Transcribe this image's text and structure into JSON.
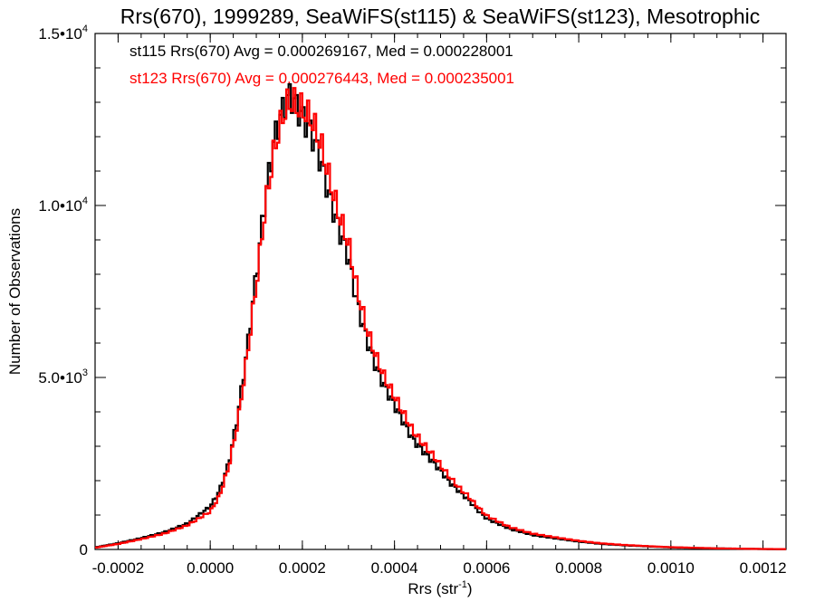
{
  "chart_data": {
    "type": "step-histogram",
    "title": "Rrs(670), 1999289, SeaWiFS(st115) & SeaWiFS(st123), Mesotrophic",
    "xlabel": "Rrs (str",
    "xlabel_sup": "-1",
    "xlabel_close": ")",
    "ylabel": "Number of Observations",
    "xlim": [
      -0.00025,
      0.00125
    ],
    "ylim": [
      0,
      15000
    ],
    "x_ticks": [
      {
        "value": -0.0002,
        "label": "-0.0002"
      },
      {
        "value": 0.0,
        "label": "0.0000"
      },
      {
        "value": 0.0002,
        "label": "0.0002"
      },
      {
        "value": 0.0004,
        "label": "0.0004"
      },
      {
        "value": 0.0006,
        "label": "0.0006"
      },
      {
        "value": 0.0008,
        "label": "0.0008"
      },
      {
        "value": 0.001,
        "label": "0.0010"
      },
      {
        "value": 0.0012,
        "label": "0.0012"
      }
    ],
    "y_ticks": [
      {
        "value": 0,
        "mantissa": "0",
        "exp": ""
      },
      {
        "value": 5000,
        "mantissa": "5.0•10",
        "exp": "3"
      },
      {
        "value": 10000,
        "mantissa": "1.0•10",
        "exp": "4"
      },
      {
        "value": 15000,
        "mantissa": "1.5•10",
        "exp": "4"
      }
    ],
    "legend": [
      {
        "text": "st115 Rrs(670) Avg = 0.000269167, Med = 0.000228001",
        "color": "#000000"
      },
      {
        "text": "st123 Rrs(670) Avg = 0.000276443, Med = 0.000235001",
        "color": "#ff0000"
      }
    ],
    "bin_width": 5e-06,
    "series": [
      {
        "name": "st115",
        "color": "#000000",
        "points": [
          [
            -0.00025,
            60
          ],
          [
            -0.0002,
            180
          ],
          [
            -0.00015,
            330
          ],
          [
            -0.0001,
            500
          ],
          [
            -5e-05,
            750
          ],
          [
            0.0,
            1250
          ],
          [
            2e-05,
            1700
          ],
          [
            4e-05,
            2500
          ],
          [
            6e-05,
            3900
          ],
          [
            8e-05,
            5800
          ],
          [
            0.0001,
            8000
          ],
          [
            0.00012,
            10300
          ],
          [
            0.00014,
            12000
          ],
          [
            0.00016,
            12900
          ],
          [
            0.00017,
            13200
          ],
          [
            0.00018,
            13100
          ],
          [
            0.00019,
            12800
          ],
          [
            0.0002,
            12600
          ],
          [
            0.00022,
            12100
          ],
          [
            0.00024,
            11300
          ],
          [
            0.00026,
            10200
          ],
          [
            0.00028,
            9300
          ],
          [
            0.0003,
            8500
          ],
          [
            0.00032,
            7100
          ],
          [
            0.00034,
            6100
          ],
          [
            0.00036,
            5300
          ],
          [
            0.00038,
            4700
          ],
          [
            0.0004,
            4200
          ],
          [
            0.00042,
            3700
          ],
          [
            0.00044,
            3200
          ],
          [
            0.00046,
            2900
          ],
          [
            0.00048,
            2600
          ],
          [
            0.0005,
            2300
          ],
          [
            0.00052,
            1950
          ],
          [
            0.00054,
            1700
          ],
          [
            0.00056,
            1450
          ],
          [
            0.00058,
            1150
          ],
          [
            0.0006,
            900
          ],
          [
            0.00065,
            600
          ],
          [
            0.0007,
            420
          ],
          [
            0.00075,
            320
          ],
          [
            0.0008,
            230
          ],
          [
            0.00085,
            160
          ],
          [
            0.0009,
            120
          ],
          [
            0.00095,
            90
          ],
          [
            0.001,
            60
          ],
          [
            0.0011,
            30
          ],
          [
            0.0012,
            12
          ],
          [
            0.00125,
            8
          ]
        ]
      },
      {
        "name": "st123",
        "color": "#ff0000",
        "points": [
          [
            -0.00025,
            50
          ],
          [
            -0.0002,
            160
          ],
          [
            -0.00015,
            300
          ],
          [
            -0.0001,
            460
          ],
          [
            -5e-05,
            700
          ],
          [
            0.0,
            1100
          ],
          [
            2e-05,
            1550
          ],
          [
            4e-05,
            2400
          ],
          [
            6e-05,
            3700
          ],
          [
            8e-05,
            5600
          ],
          [
            0.0001,
            7700
          ],
          [
            0.00012,
            10000
          ],
          [
            0.00014,
            11700
          ],
          [
            0.00016,
            12700
          ],
          [
            0.00017,
            13000
          ],
          [
            0.00018,
            13000
          ],
          [
            0.00019,
            12850
          ],
          [
            0.0002,
            12800
          ],
          [
            0.00022,
            12500
          ],
          [
            0.00024,
            11800
          ],
          [
            0.00026,
            10700
          ],
          [
            0.00028,
            9700
          ],
          [
            0.0003,
            8900
          ],
          [
            0.00032,
            7500
          ],
          [
            0.00034,
            6400
          ],
          [
            0.00036,
            5600
          ],
          [
            0.00038,
            4950
          ],
          [
            0.0004,
            4450
          ],
          [
            0.00042,
            3950
          ],
          [
            0.00044,
            3450
          ],
          [
            0.00046,
            3100
          ],
          [
            0.00048,
            2800
          ],
          [
            0.0005,
            2450
          ],
          [
            0.00052,
            2100
          ],
          [
            0.00054,
            1800
          ],
          [
            0.00056,
            1550
          ],
          [
            0.00058,
            1250
          ],
          [
            0.0006,
            980
          ],
          [
            0.00065,
            650
          ],
          [
            0.0007,
            460
          ],
          [
            0.00075,
            350
          ],
          [
            0.0008,
            250
          ],
          [
            0.00085,
            175
          ],
          [
            0.0009,
            130
          ],
          [
            0.00095,
            95
          ],
          [
            0.001,
            65
          ],
          [
            0.0011,
            32
          ],
          [
            0.0012,
            14
          ],
          [
            0.00125,
            9
          ]
        ]
      }
    ]
  }
}
